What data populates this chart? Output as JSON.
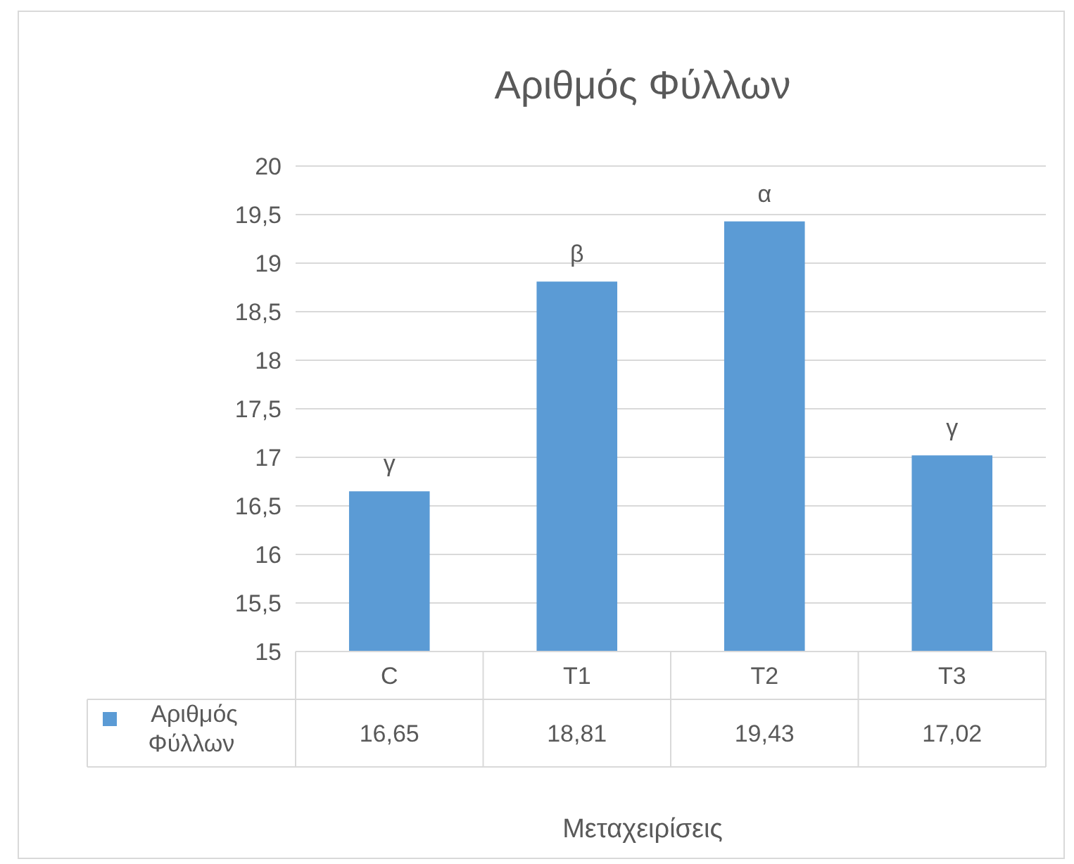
{
  "chart_data": {
    "type": "bar",
    "title": "Αριθμός Φύλλων",
    "xlabel": "Μεταχειρίσεις",
    "categories": [
      "C",
      "T1",
      "T2",
      "T3"
    ],
    "series": [
      {
        "name": "Αριθμός Φύλλων",
        "color": "#5b9bd5",
        "values": [
          16.65,
          18.81,
          19.43,
          17.02
        ],
        "value_labels": [
          "16,65",
          "18,81",
          "19,43",
          "17,02"
        ]
      }
    ],
    "ylim": [
      15,
      20
    ],
    "yticks": [
      15,
      {
        "value": 15.5,
        "label": "15,5"
      },
      16,
      {
        "value": 16.5,
        "label": "16,5"
      },
      17,
      {
        "value": 17.5,
        "label": "17,5"
      },
      18,
      {
        "value": 18.5,
        "label": "18,5"
      },
      19,
      {
        "value": 19.5,
        "label": "19,5"
      },
      20
    ],
    "grid": "y",
    "legend": "bottom",
    "annotations": [
      {
        "text": "γ",
        "x": "C",
        "y": 16.65
      },
      {
        "text": "β",
        "x": "T1",
        "y": 18.81
      },
      {
        "text": "α",
        "x": "T2",
        "y": 19.43
      },
      {
        "text": "γ",
        "x": "T3",
        "y": 17.02
      }
    ]
  }
}
